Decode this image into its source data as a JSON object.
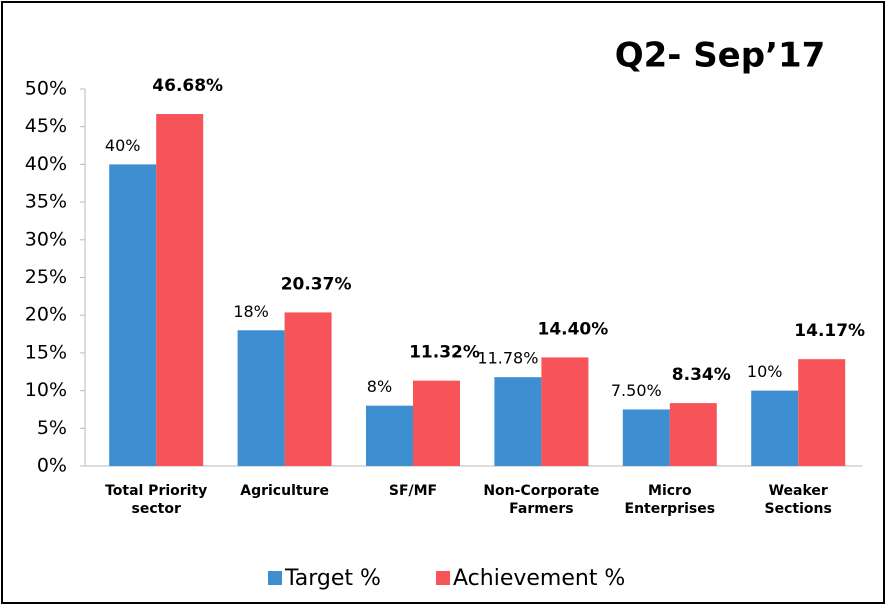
{
  "chart_data": {
    "type": "bar",
    "title": "Q2- Sep’17",
    "categories": [
      "Total Priority sector",
      "Agriculture",
      "SF/MF",
      "Non-Corporate Farmers",
      "Micro Enterprises",
      "Weaker Sections"
    ],
    "series": [
      {
        "name": "Target %",
        "color": "#3d8fd1",
        "values": [
          40,
          18,
          8,
          11.78,
          7.5,
          10
        ],
        "value_labels": [
          "40%",
          "18%",
          "8%",
          "11.78%",
          "7.50%",
          "10%"
        ]
      },
      {
        "name": "Achievement %",
        "color": "#f65458",
        "values": [
          46.68,
          20.37,
          11.32,
          14.4,
          8.34,
          14.17
        ],
        "value_labels": [
          "46.68%",
          "20.37%",
          "11.32%",
          "14.40%",
          "8.34%",
          "14.17%"
        ]
      }
    ],
    "ylim": [
      0,
      50
    ],
    "yticks": [
      {
        "value": 0,
        "label": "0%"
      },
      {
        "value": 5,
        "label": "5%"
      },
      {
        "value": 10,
        "label": "10%"
      },
      {
        "value": 15,
        "label": "15%"
      },
      {
        "value": 20,
        "label": "20%"
      },
      {
        "value": 25,
        "label": "25%"
      },
      {
        "value": 30,
        "label": "30%"
      },
      {
        "value": 35,
        "label": "35%"
      },
      {
        "value": 40,
        "label": "40%"
      },
      {
        "value": 45,
        "label": "45%"
      },
      {
        "value": 50,
        "label": "50%"
      }
    ],
    "legend": "bottom"
  }
}
